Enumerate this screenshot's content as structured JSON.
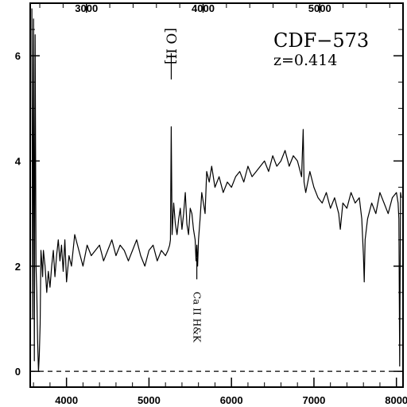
{
  "chart_data": {
    "type": "line",
    "title": "CDF−573",
    "subtitle": "z=0.414",
    "x_bottom": {
      "range": [
        3560,
        8080
      ],
      "ticks": [
        4000,
        5000,
        6000,
        7000,
        8000
      ],
      "tick_labels": [
        "4000",
        "5000",
        "6000",
        "7000",
        "8000"
      ]
    },
    "x_top": {
      "range": [
        2518,
        5714
      ],
      "ticks": [
        3000,
        4000,
        5000
      ],
      "tick_labels": [
        "3000",
        "4000",
        "5000"
      ]
    },
    "y": {
      "range": [
        -0.3,
        7.0
      ],
      "ticks": [
        0,
        2,
        4,
        6
      ],
      "tick_labels": [
        "0",
        "2",
        "4",
        "6"
      ]
    },
    "zero_line": {
      "y": 0,
      "style": "dashed"
    },
    "annotations": [
      {
        "text": "[O II]",
        "x": 5270,
        "marker_y_range": [
          5.55,
          6.05
        ]
      },
      {
        "text": "Ca II H&K",
        "x": 5580,
        "marker_y_range": [
          1.75,
          2.15
        ]
      }
    ],
    "series": [
      {
        "x": [
          3580,
          3590,
          3600,
          3610,
          3620,
          3630,
          3640,
          3650,
          3660,
          3670,
          3680,
          3690,
          3700,
          3710,
          3720,
          3740,
          3760,
          3780,
          3800,
          3820,
          3840,
          3860,
          3880,
          3900,
          3920,
          3940,
          3960,
          3980,
          4000,
          4030,
          4060,
          4100,
          4150,
          4200,
          4250,
          4300,
          4350,
          4400,
          4450,
          4500,
          4550,
          4600,
          4650,
          4700,
          4750,
          4800,
          4850,
          4900,
          4950,
          5000,
          5050,
          5100,
          5150,
          5200,
          5230,
          5250,
          5260,
          5270,
          5280,
          5290,
          5300,
          5320,
          5340,
          5360,
          5380,
          5400,
          5420,
          5440,
          5460,
          5480,
          5500,
          5520,
          5540,
          5560,
          5570,
          5580,
          5590,
          5600,
          5620,
          5640,
          5660,
          5680,
          5700,
          5730,
          5760,
          5800,
          5850,
          5900,
          5950,
          6000,
          6050,
          6100,
          6150,
          6200,
          6250,
          6300,
          6350,
          6400,
          6450,
          6500,
          6550,
          6600,
          6650,
          6700,
          6750,
          6800,
          6850,
          6870,
          6880,
          6900,
          6950,
          7000,
          7050,
          7100,
          7150,
          7200,
          7250,
          7300,
          7320,
          7350,
          7400,
          7450,
          7500,
          7550,
          7580,
          7600,
          7610,
          7620,
          7650,
          7700,
          7750,
          7800,
          7850,
          7900,
          7950,
          8000,
          8020,
          8030,
          8040,
          8050,
          8060
        ],
        "y": [
          6.9,
          1.0,
          6.7,
          0.2,
          6.4,
          2.0,
          1.5,
          0.6,
          0.0,
          0.3,
          0.9,
          2.3,
          2.1,
          1.8,
          2.3,
          2.0,
          1.5,
          1.9,
          1.6,
          2.0,
          2.3,
          1.8,
          2.2,
          2.5,
          2.1,
          2.4,
          1.9,
          2.5,
          1.7,
          2.2,
          2.0,
          2.6,
          2.3,
          2.0,
          2.4,
          2.2,
          2.3,
          2.4,
          2.1,
          2.3,
          2.5,
          2.2,
          2.4,
          2.3,
          2.1,
          2.3,
          2.5,
          2.2,
          2.0,
          2.3,
          2.4,
          2.1,
          2.3,
          2.2,
          2.3,
          2.4,
          2.5,
          4.65,
          2.6,
          2.9,
          3.2,
          2.8,
          2.6,
          2.9,
          3.1,
          2.7,
          3.0,
          3.4,
          2.8,
          2.6,
          3.1,
          3.0,
          2.7,
          2.5,
          2.1,
          2.4,
          2.0,
          2.5,
          2.9,
          3.4,
          3.2,
          3.0,
          3.8,
          3.6,
          3.9,
          3.5,
          3.7,
          3.4,
          3.6,
          3.5,
          3.7,
          3.8,
          3.6,
          3.9,
          3.7,
          3.8,
          3.9,
          4.0,
          3.8,
          4.1,
          3.9,
          4.0,
          4.2,
          3.9,
          4.1,
          4.0,
          3.7,
          4.6,
          3.6,
          3.4,
          3.8,
          3.5,
          3.3,
          3.2,
          3.4,
          3.1,
          3.3,
          3.0,
          2.7,
          3.2,
          3.1,
          3.4,
          3.2,
          3.3,
          2.9,
          2.2,
          1.7,
          2.5,
          2.9,
          3.2,
          3.0,
          3.4,
          3.2,
          3.0,
          3.3,
          3.4,
          3.2,
          2.9,
          0.1,
          3.4,
          3.3
        ]
      }
    ]
  }
}
